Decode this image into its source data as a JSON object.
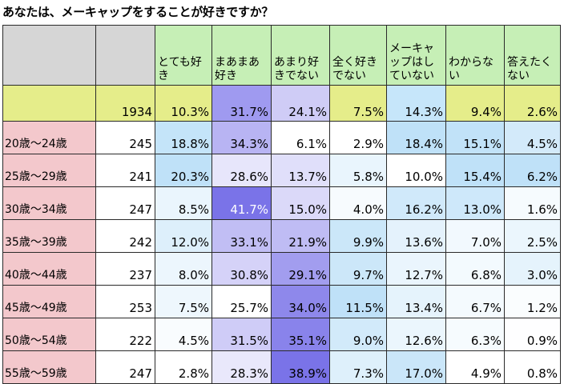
{
  "title": "あなたは、メーキャップをすることが好きですか？",
  "chart_data": {
    "type": "table",
    "columns": [
      "とても好き",
      "まあまあ好き",
      "あまり好きでない",
      "全く好きでない",
      "メーキャップはしていない",
      "わからない",
      "答えたくない"
    ],
    "total": {
      "label": "",
      "n": "1934",
      "values": [
        "10.3%",
        "31.7%",
        "24.1%",
        "7.5%",
        "14.3%",
        "9.4%",
        "2.6%"
      ]
    },
    "rows": [
      {
        "label": "20歳～24歳",
        "n": "245",
        "values": [
          "18.8%",
          "34.3%",
          "6.1%",
          "2.9%",
          "18.4%",
          "15.1%",
          "4.5%"
        ]
      },
      {
        "label": "25歳～29歳",
        "n": "241",
        "values": [
          "20.3%",
          "28.6%",
          "13.7%",
          "5.8%",
          "10.0%",
          "15.4%",
          "6.2%"
        ]
      },
      {
        "label": "30歳～34歳",
        "n": "247",
        "values": [
          "8.5%",
          "41.7%",
          "15.0%",
          "4.0%",
          "16.2%",
          "13.0%",
          "1.6%"
        ]
      },
      {
        "label": "35歳～39歳",
        "n": "242",
        "values": [
          "12.0%",
          "33.1%",
          "21.9%",
          "9.9%",
          "13.6%",
          "7.0%",
          "2.5%"
        ]
      },
      {
        "label": "40歳～44歳",
        "n": "237",
        "values": [
          "8.0%",
          "30.8%",
          "29.1%",
          "9.7%",
          "12.7%",
          "6.8%",
          "3.0%"
        ]
      },
      {
        "label": "45歳～49歳",
        "n": "253",
        "values": [
          "7.5%",
          "25.7%",
          "34.0%",
          "11.5%",
          "13.4%",
          "6.7%",
          "1.2%"
        ]
      },
      {
        "label": "50歳～54歳",
        "n": "222",
        "values": [
          "4.5%",
          "31.5%",
          "35.1%",
          "9.0%",
          "12.6%",
          "6.3%",
          "0.9%"
        ]
      },
      {
        "label": "55歳～59歳",
        "n": "247",
        "values": [
          "2.8%",
          "28.3%",
          "38.9%",
          "7.3%",
          "17.0%",
          "4.9%",
          "0.8%"
        ]
      }
    ]
  },
  "colors": {
    "header_grey": "#d6d6d6",
    "header_green": "#c6efb6",
    "total_lime": "#e5ed8a",
    "age_pink": "#f3c8cc",
    "heat_like": "#bfe1f8",
    "heat_dislike": "#7a73e8",
    "heat_high_text": "#ffffff"
  }
}
